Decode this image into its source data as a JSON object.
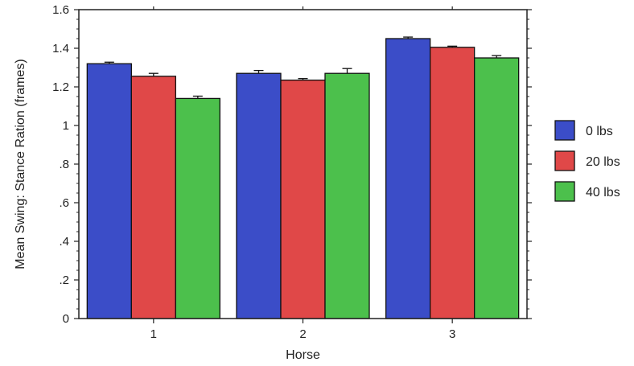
{
  "chart_data": {
    "type": "bar",
    "title": "",
    "xlabel": "Horse",
    "ylabel": "Mean Swing: Stance Ration (frames)",
    "categories": [
      "1",
      "2",
      "3"
    ],
    "ylim": [
      0,
      1.6
    ],
    "yticks": [
      0,
      0.2,
      0.4,
      0.6,
      0.8,
      1.0,
      1.2,
      1.4,
      1.6
    ],
    "ytick_labels": [
      "0",
      ".2",
      ".4",
      ".6",
      ".8",
      "1",
      "1.2",
      "1.4",
      "1.6"
    ],
    "grid": false,
    "legend_position": "right",
    "series": [
      {
        "name": "0 lbs",
        "color": "#3b4dc8",
        "values": [
          1.32,
          1.27,
          1.45
        ],
        "errors": [
          0.008,
          0.015,
          0.008
        ]
      },
      {
        "name": "20 lbs",
        "color": "#e04848",
        "values": [
          1.255,
          1.235,
          1.405
        ],
        "errors": [
          0.015,
          0.008,
          0.006
        ]
      },
      {
        "name": "40 lbs",
        "color": "#4cc04c",
        "values": [
          1.14,
          1.27,
          1.35
        ],
        "errors": [
          0.012,
          0.025,
          0.012
        ]
      }
    ]
  }
}
